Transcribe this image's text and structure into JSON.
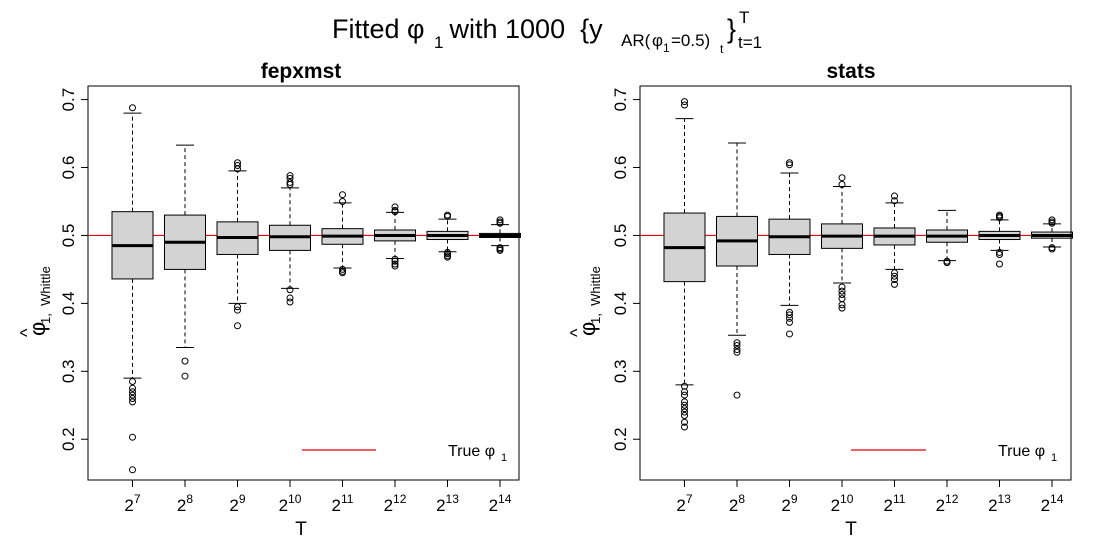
{
  "figure": {
    "title_main": "Fitted φ",
    "title_main_sub": "1",
    "title_with": " with 1000  {y",
    "title_y_sub": "AR(",
    "title_phi": "φ",
    "title_phi_sub": "1",
    "title_eq": "=0.5)",
    "title_t_sub": "t",
    "title_close": "}",
    "title_sup": "T",
    "title_range_sub": "t=1"
  },
  "chart_data": [
    {
      "type": "box",
      "title": "fepxmst",
      "xlabel": "T",
      "ylabel_symbol": "φ",
      "ylabel_hat": "^",
      "ylabel_sub": "1,  Whittle",
      "categories": [
        "2^7",
        "2^8",
        "2^9",
        "2^10",
        "2^11",
        "2^12",
        "2^13",
        "2^14"
      ],
      "tick_base": "2",
      "tick_exponents": [
        "7",
        "8",
        "9",
        "10",
        "11",
        "12",
        "13",
        "14"
      ],
      "ylim": [
        0.14,
        0.72
      ],
      "yticks": [
        0.2,
        0.3,
        0.4,
        0.5,
        0.6,
        0.7
      ],
      "ytick_labels": [
        "0.2",
        "0.3",
        "0.4",
        "0.5",
        "0.6",
        "0.7"
      ],
      "reference_line": 0.5,
      "reference_color": "#e0000f",
      "box_fill": "#d3d3d3",
      "legend": {
        "label": "True φ",
        "label_sub": "1",
        "position": "bottom-right"
      },
      "boxes": [
        {
          "q1": 0.436,
          "median": 0.485,
          "q3": 0.535,
          "whisker_low": 0.29,
          "whisker_high": 0.68,
          "outliers": [
            0.688,
            0.285,
            0.275,
            0.27,
            0.265,
            0.26,
            0.255,
            0.203,
            0.155
          ]
        },
        {
          "q1": 0.45,
          "median": 0.49,
          "q3": 0.53,
          "whisker_low": 0.335,
          "whisker_high": 0.633,
          "outliers": [
            0.315,
            0.293
          ]
        },
        {
          "q1": 0.472,
          "median": 0.497,
          "q3": 0.52,
          "whisker_low": 0.4,
          "whisker_high": 0.595,
          "outliers": [
            0.607,
            0.603,
            0.598,
            0.395,
            0.39,
            0.367
          ]
        },
        {
          "q1": 0.478,
          "median": 0.498,
          "q3": 0.515,
          "whisker_low": 0.422,
          "whisker_high": 0.57,
          "outliers": [
            0.588,
            0.584,
            0.578,
            0.575,
            0.42,
            0.408,
            0.402
          ]
        },
        {
          "q1": 0.487,
          "median": 0.499,
          "q3": 0.51,
          "whisker_low": 0.452,
          "whisker_high": 0.548,
          "outliers": [
            0.56,
            0.55,
            0.45,
            0.447,
            0.445
          ]
        },
        {
          "q1": 0.492,
          "median": 0.5,
          "q3": 0.508,
          "whisker_low": 0.466,
          "whisker_high": 0.534,
          "outliers": [
            0.542,
            0.537,
            0.535,
            0.465,
            0.462,
            0.458,
            0.455
          ]
        },
        {
          "q1": 0.494,
          "median": 0.5,
          "q3": 0.506,
          "whisker_low": 0.476,
          "whisker_high": 0.524,
          "outliers": [
            0.53,
            0.528,
            0.475,
            0.473,
            0.47,
            0.468
          ]
        },
        {
          "q1": 0.497,
          "median": 0.5,
          "q3": 0.503,
          "whisker_low": 0.485,
          "whisker_high": 0.516,
          "outliers": [
            0.523,
            0.52,
            0.518,
            0.482,
            0.48,
            0.478
          ]
        }
      ]
    },
    {
      "type": "box",
      "title": "stats",
      "xlabel": "T",
      "ylabel_symbol": "φ",
      "ylabel_hat": "^",
      "ylabel_sub": "1,  Whittle",
      "categories": [
        "2^7",
        "2^8",
        "2^9",
        "2^10",
        "2^11",
        "2^12",
        "2^13",
        "2^14"
      ],
      "tick_base": "2",
      "tick_exponents": [
        "7",
        "8",
        "9",
        "10",
        "11",
        "12",
        "13",
        "14"
      ],
      "ylim": [
        0.14,
        0.72
      ],
      "yticks": [
        0.2,
        0.3,
        0.4,
        0.5,
        0.6,
        0.7
      ],
      "ytick_labels": [
        "0.2",
        "0.3",
        "0.4",
        "0.5",
        "0.6",
        "0.7"
      ],
      "reference_line": 0.5,
      "reference_color": "#e0000f",
      "box_fill": "#d3d3d3",
      "legend": {
        "label": "True φ",
        "label_sub": "1",
        "position": "bottom-right"
      },
      "boxes": [
        {
          "q1": 0.432,
          "median": 0.482,
          "q3": 0.533,
          "whisker_low": 0.28,
          "whisker_high": 0.672,
          "outliers": [
            0.697,
            0.692,
            0.278,
            0.27,
            0.265,
            0.255,
            0.25,
            0.245,
            0.24,
            0.235,
            0.225,
            0.218
          ]
        },
        {
          "q1": 0.455,
          "median": 0.492,
          "q3": 0.528,
          "whisker_low": 0.353,
          "whisker_high": 0.636,
          "outliers": [
            0.342,
            0.338,
            0.332,
            0.328,
            0.265
          ]
        },
        {
          "q1": 0.472,
          "median": 0.498,
          "q3": 0.524,
          "whisker_low": 0.397,
          "whisker_high": 0.592,
          "outliers": [
            0.607,
            0.604,
            0.387,
            0.383,
            0.378,
            0.372,
            0.355
          ]
        },
        {
          "q1": 0.481,
          "median": 0.499,
          "q3": 0.517,
          "whisker_low": 0.43,
          "whisker_high": 0.572,
          "outliers": [
            0.585,
            0.575,
            0.424,
            0.418,
            0.413,
            0.407,
            0.398,
            0.393
          ]
        },
        {
          "q1": 0.486,
          "median": 0.499,
          "q3": 0.511,
          "whisker_low": 0.45,
          "whisker_high": 0.548,
          "outliers": [
            0.558,
            0.551,
            0.445,
            0.44,
            0.435,
            0.428
          ]
        },
        {
          "q1": 0.49,
          "median": 0.499,
          "q3": 0.508,
          "whisker_low": 0.463,
          "whisker_high": 0.537,
          "outliers": [
            0.462,
            0.46
          ]
        },
        {
          "q1": 0.494,
          "median": 0.5,
          "q3": 0.506,
          "whisker_low": 0.478,
          "whisker_high": 0.523,
          "outliers": [
            0.53,
            0.528,
            0.526,
            0.475,
            0.472,
            0.458
          ]
        },
        {
          "q1": 0.496,
          "median": 0.5,
          "q3": 0.505,
          "whisker_low": 0.483,
          "whisker_high": 0.517,
          "outliers": [
            0.523,
            0.52,
            0.518,
            0.482,
            0.48
          ]
        }
      ]
    }
  ]
}
